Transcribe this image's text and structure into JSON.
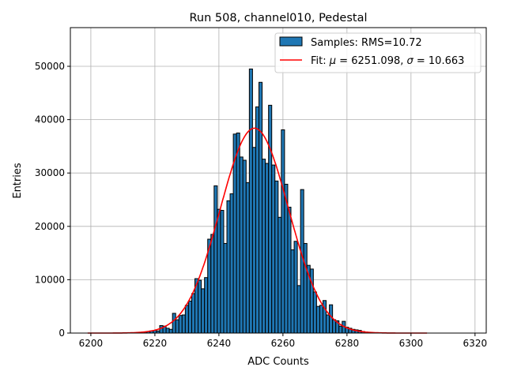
{
  "chart_data": {
    "type": "bar",
    "title": "Run 508, channel010, Pedestal",
    "xlabel": "ADC Counts",
    "ylabel": "Entries",
    "xlim": [
      6193.6,
      6323.5
    ],
    "ylim": [
      0,
      57250
    ],
    "grid": true,
    "legend_position": "top-right",
    "xticks": [
      6200,
      6220,
      6240,
      6260,
      6280,
      6300,
      6320
    ],
    "yticks": [
      0,
      10000,
      20000,
      30000,
      40000,
      50000
    ],
    "bin_width": 1,
    "bins": [
      6216,
      6217,
      6218,
      6219,
      6220,
      6221,
      6222,
      6223,
      6224,
      6225,
      6226,
      6227,
      6228,
      6229,
      6230,
      6231,
      6232,
      6233,
      6234,
      6235,
      6236,
      6237,
      6238,
      6239,
      6240,
      6241,
      6242,
      6243,
      6244,
      6245,
      6246,
      6247,
      6248,
      6249,
      6250,
      6251,
      6252,
      6253,
      6254,
      6255,
      6256,
      6257,
      6258,
      6259,
      6260,
      6261,
      6262,
      6263,
      6264,
      6265,
      6266,
      6267,
      6268,
      6269,
      6270,
      6271,
      6272,
      6273,
      6274,
      6275,
      6276,
      6277,
      6278,
      6279,
      6280,
      6281,
      6282,
      6283,
      6284,
      6285,
      6286,
      6287
    ],
    "values": [
      100,
      200,
      300,
      400,
      500,
      400,
      1400,
      1300,
      900,
      700,
      3700,
      2500,
      3300,
      3400,
      5200,
      6000,
      7400,
      10200,
      9900,
      8300,
      10400,
      17600,
      18500,
      27600,
      23200,
      23000,
      16800,
      24800,
      26100,
      37300,
      37500,
      33000,
      32400,
      28200,
      49500,
      34800,
      42400,
      47000,
      32600,
      31800,
      42700,
      31500,
      28500,
      21700,
      38100,
      27900,
      23600,
      15600,
      17200,
      8900,
      26900,
      16800,
      12700,
      12000,
      7700,
      5000,
      5200,
      6100,
      3400,
      5300,
      2500,
      2300,
      1300,
      2200,
      1100,
      900,
      700,
      600,
      500,
      300,
      200,
      100
    ],
    "fit": {
      "mu": 6251.098,
      "sigma": 10.663,
      "amplitude": 38400,
      "range": [
        6199,
        6305
      ]
    },
    "series": [
      {
        "name": "Samples: RMS=10.72",
        "color": "#1f77b4"
      },
      {
        "name_prefix": "Fit: ",
        "mu_label": "μ",
        "mu_text": " = 6251.098, ",
        "sigma_label": "σ",
        "sigma_text": " = 10.663",
        "color": "#ff0000"
      }
    ]
  }
}
